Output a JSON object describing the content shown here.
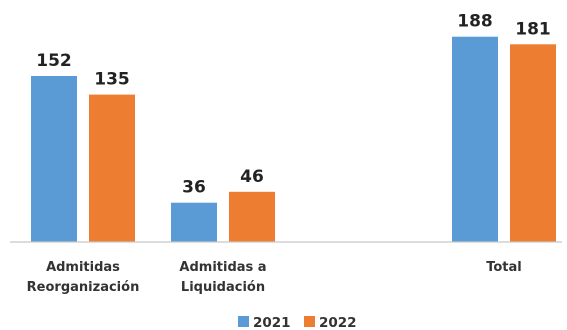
{
  "chart_data": {
    "type": "bar",
    "categories": [
      [
        "Admitidas",
        "Reorganización"
      ],
      [
        "Admitidas a",
        "Liquidación"
      ],
      [
        "",
        ""
      ],
      [
        "Total",
        ""
      ]
    ],
    "series": [
      {
        "name": "2021",
        "color": "#5B9BD5",
        "values": [
          152,
          36,
          null,
          188
        ]
      },
      {
        "name": "2022",
        "color": "#ED7D31",
        "values": [
          135,
          46,
          null,
          181
        ]
      }
    ],
    "ylim": [
      0,
      200
    ],
    "grid": false,
    "legend": "bottom",
    "axis_color": "#c8c8c8"
  }
}
